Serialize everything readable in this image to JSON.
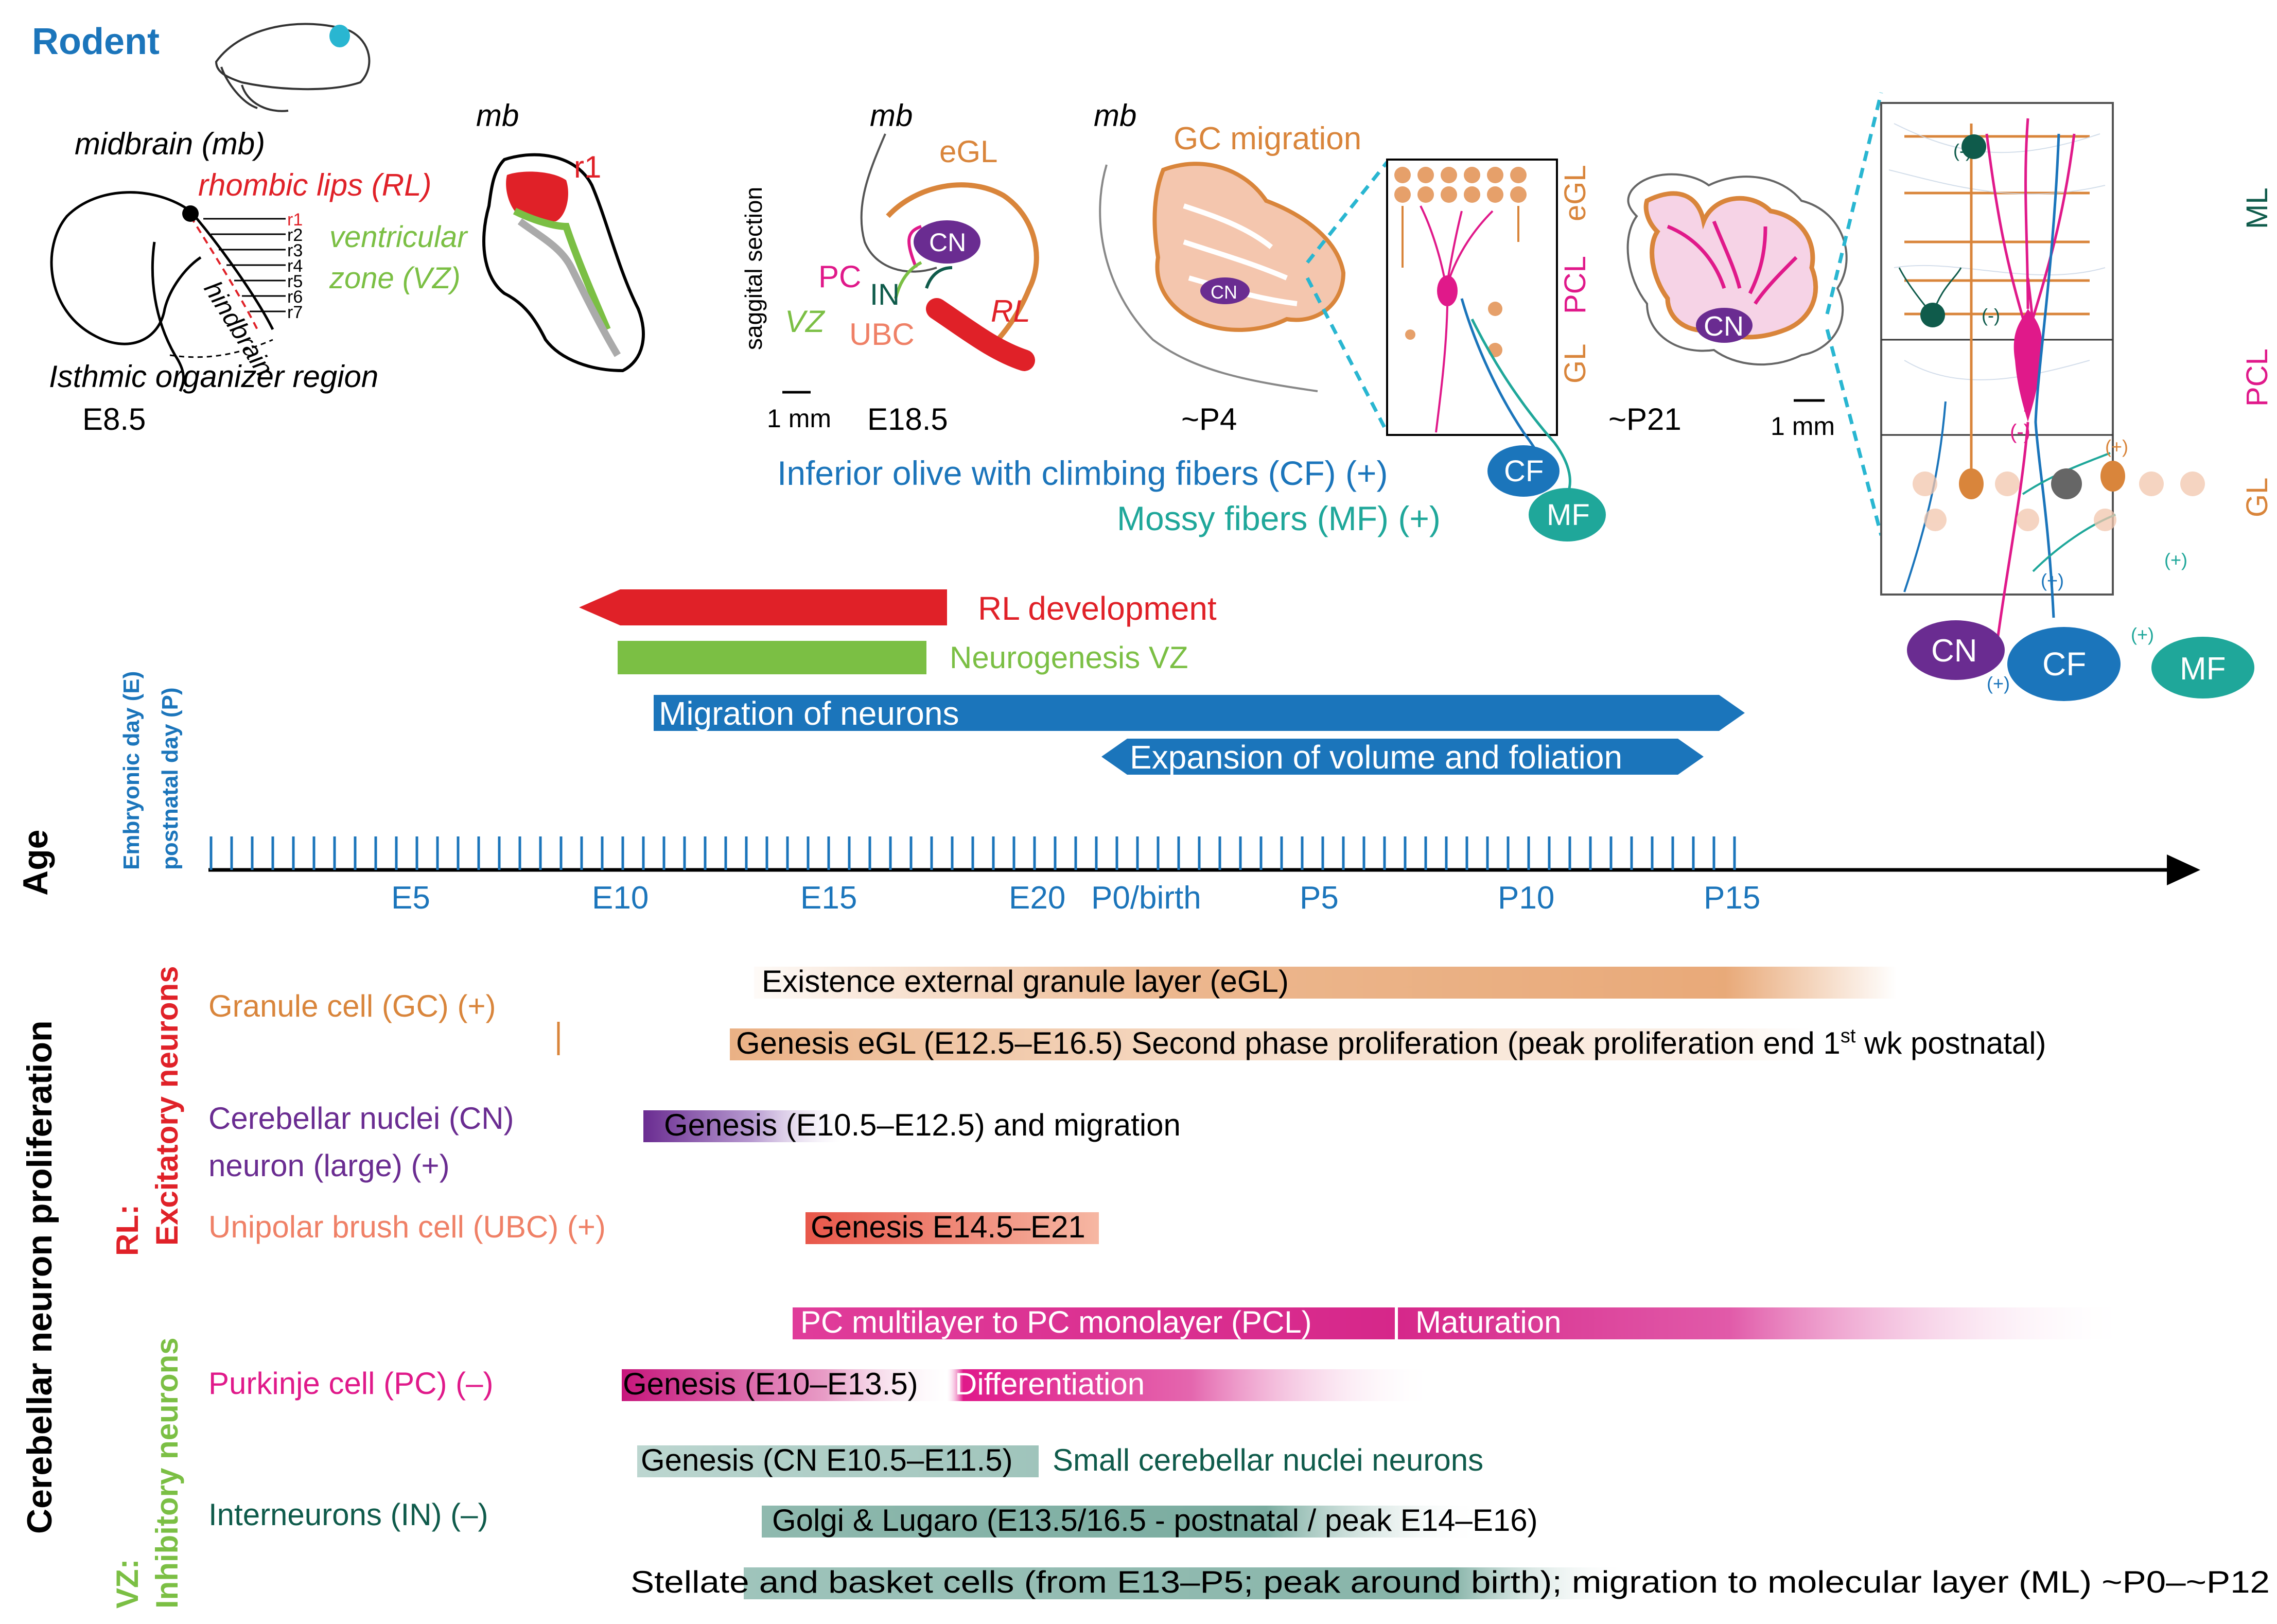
{
  "colors": {
    "blue": "#1b75bb",
    "red": "#e02128",
    "green": "#7bbf44",
    "orange": "#d9853b",
    "purple": "#6a2c91",
    "magenta": "#e0198a",
    "salmon": "#ef8066",
    "teal": "#1fa79a",
    "dark_teal": "#0f5b4b",
    "cyan": "#29b6d1",
    "black": "#000000"
  },
  "header": {
    "species": "Rodent",
    "midbrain_label": "midbrain (mb)",
    "rl_label": "rhombic lips (RL)",
    "vz_label_1": "ventricular",
    "vz_label_2": "zone (VZ)",
    "hindbrain": "hindbrain",
    "isthmic": "Isthmic organizer region",
    "stage_e85": "E8.5",
    "rhombomeres": [
      "r1",
      "r2",
      "r3",
      "r4",
      "r5",
      "r6",
      "r7"
    ],
    "mb_short": "mb",
    "r1_label": "r1"
  },
  "e185_panel": {
    "sagittal": "saggital section",
    "mb": "mb",
    "egl": "eGL",
    "pc": "PC",
    "in": "IN",
    "cn": "CN",
    "vz": "VZ",
    "ubc": "UBC",
    "rl": "RL",
    "scale": "1 mm",
    "stage": "E18.5"
  },
  "p4_panel": {
    "mb": "mb",
    "gc_migration": "GC migration",
    "cn": "CN",
    "egl": "eGL",
    "pcl": "PCL",
    "gl": "GL",
    "stage": "~P4",
    "cf": "CF",
    "mf": "MF",
    "cf_text": "Inferior olive with climbing fibers (CF) (+)",
    "mf_text": "Mossy fibers (MF) (+)"
  },
  "p21_panel": {
    "cn": "CN",
    "stage": "~P21",
    "scale": "1 mm"
  },
  "circuit_panel": {
    "ml": "ML",
    "pcl": "PCL",
    "gl": "GL",
    "minus": "(-)",
    "plus": "(+)",
    "cn": "CN",
    "cf": "CF",
    "mf": "MF"
  },
  "timeline": {
    "rl_development": "RL development",
    "neurogenesis_vz": "Neurogenesis VZ",
    "migration": "Migration of neurons",
    "expansion": "Expansion of volume and foliation",
    "axis_label": "Age",
    "axis_sub_1": "Embryonic day (E)",
    "axis_sub_2": "postnatal day (P)",
    "ticks": [
      "E5",
      "E10",
      "E15",
      "E20",
      "P0/birth",
      "P5",
      "P10",
      "P15"
    ]
  },
  "proliferation": {
    "side_title": "Cerebellar neuron proliferation",
    "rl_group_1": "RL:",
    "rl_group_2": "Excitatory neurons",
    "vz_group_1": "VZ:",
    "vz_group_2": "Inhibitory neurons",
    "gc_label": "Granule cell (GC) (+)",
    "gc_bar_1": "Existence external granule layer (eGL)",
    "gc_bar_2a": "Genesis eGL (E12.5–E16.5)",
    "gc_bar_2b": "Second phase proliferation (peak proliferation end 1",
    "gc_bar_2sup": "st",
    "gc_bar_2c": " wk postnatal)",
    "cn_label_1": "Cerebellar nuclei (CN)",
    "cn_label_2": "neuron (large) (+)",
    "cn_bar": "Genesis (E10.5–E12.5) and migration",
    "ubc_label": "Unipolar brush cell (UBC) (+)",
    "ubc_bar": "Genesis E14.5–E21",
    "pc_bar_1a": "PC multilayer to PC monolayer (PCL)",
    "pc_bar_1b": "Maturation",
    "pc_label": "Purkinje cell (PC) (–)",
    "pc_bar_2a": "Genesis",
    "pc_bar_2b": " (E10–E13.5)",
    "pc_bar_2c": "Differentiation",
    "in_bar_1a": "Genesis (CN E10.5–E11.5)",
    "in_bar_1b": "Small cerebellar nuclei neurons",
    "in_label": "Interneurons (IN) (–)",
    "in_bar_2": "Golgi & Lugaro (E13.5/16.5 - postnatal / peak E14–E16)",
    "in_bar_3": "Stellate and basket cells (from E13–P5; peak around birth); migration to molecular layer (ML) ~P0–~P12"
  }
}
